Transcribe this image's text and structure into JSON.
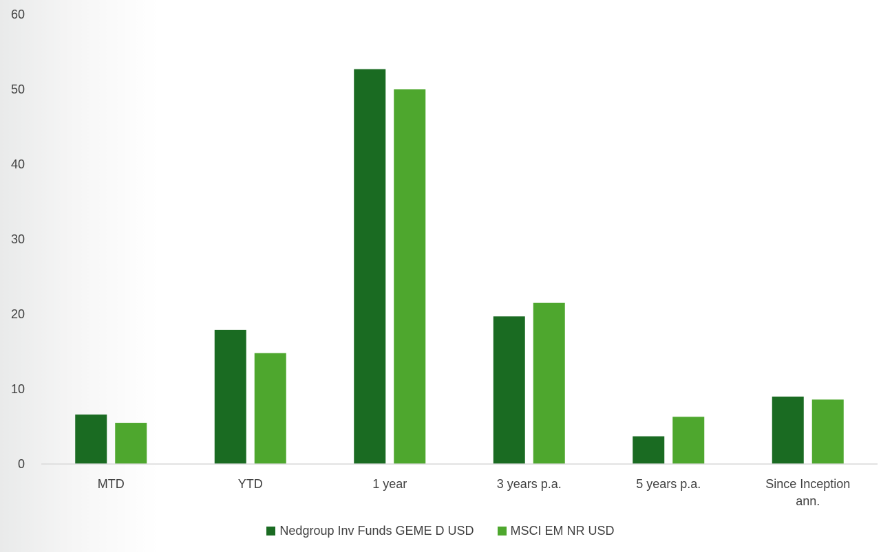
{
  "chart_data": {
    "type": "bar",
    "categories": [
      "MTD",
      "YTD",
      "1 year",
      "3 years p.a.",
      "5 years p.a.",
      "Since Inception ann."
    ],
    "category_lines": [
      [
        "MTD"
      ],
      [
        "YTD"
      ],
      [
        "1 year"
      ],
      [
        "3 years p.a."
      ],
      [
        "5 years p.a."
      ],
      [
        "Since Inception",
        "ann."
      ]
    ],
    "series": [
      {
        "name": "Nedgroup Inv Funds GEME D USD",
        "color": "#1a6b22",
        "values": [
          6.6,
          17.9,
          52.7,
          19.7,
          3.7,
          9.0
        ]
      },
      {
        "name": "MSCI EM NR USD",
        "color": "#4ea72e",
        "values": [
          5.5,
          14.8,
          50.0,
          21.5,
          6.3,
          8.6
        ]
      }
    ],
    "ylim": [
      0,
      60
    ],
    "yticks": [
      "0",
      "10",
      "20",
      "30",
      "40",
      "50",
      "60"
    ],
    "grid": false,
    "legend_position": "bottom",
    "title": "",
    "xlabel": "",
    "ylabel": ""
  }
}
